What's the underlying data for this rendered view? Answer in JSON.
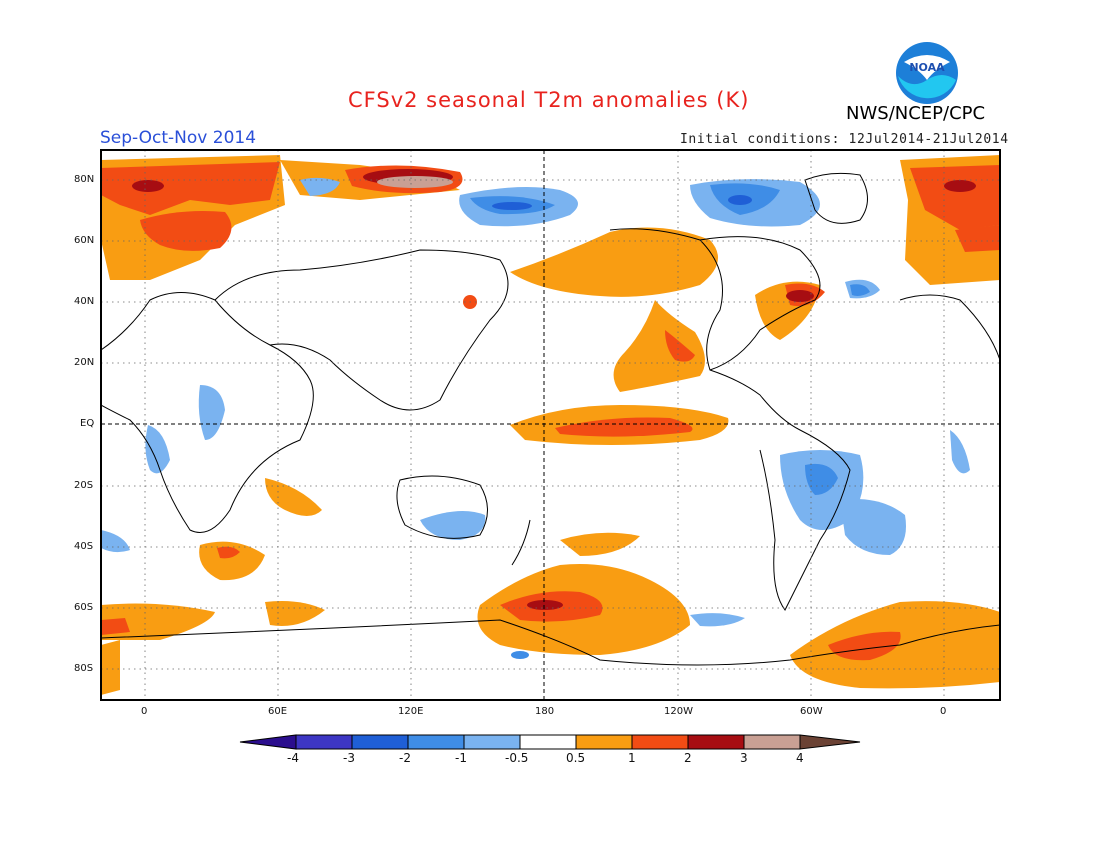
{
  "header": {
    "title": "CFSv2 seasonal T2m anomalies (K)",
    "organization": "NWS/NCEP/CPC",
    "season": "Sep-Oct-Nov 2014",
    "initial_conditions": "Initial conditions: 12Jul2014-21Jul2014",
    "logo_text": "NOAA"
  },
  "map": {
    "lat_labels": [
      "80N",
      "60N",
      "40N",
      "20N",
      "EQ",
      "20S",
      "40S",
      "60S",
      "80S"
    ],
    "lon_labels": [
      "0",
      "60E",
      "120E",
      "180",
      "120W",
      "60W",
      "0"
    ]
  },
  "colorbar": {
    "tick_labels": [
      "-4",
      "-3",
      "-2",
      "-1",
      "-0.5",
      "0.5",
      "1",
      "2",
      "3",
      "4"
    ],
    "colors": {
      "below_min": "#2b0e8e",
      "c1": "#3d36c4",
      "c2": "#1f5fd6",
      "c3": "#3f8de6",
      "c4": "#7ab3f0",
      "neutral": "#ffffff",
      "w1": "#f99d12",
      "w2": "#f24c14",
      "w3": "#a70d12",
      "w4": "#c9a094",
      "above_max": "#6b4234"
    }
  }
}
